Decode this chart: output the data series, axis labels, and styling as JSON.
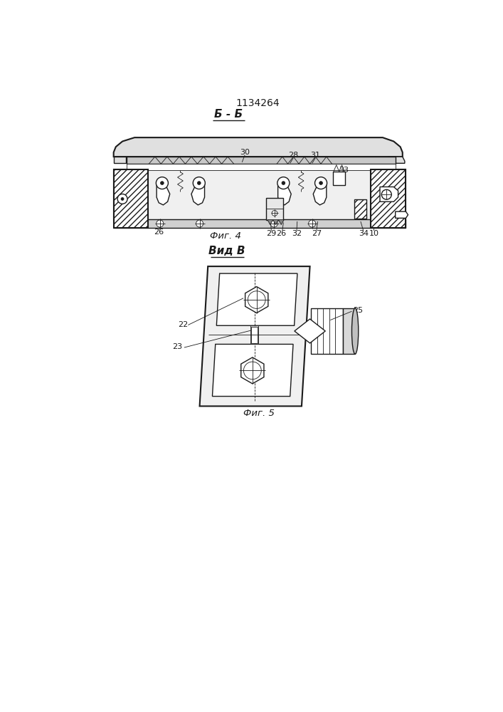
{
  "patent_number": "1134264",
  "fig4_label": "Фиг. 4",
  "fig5_label": "Фиг. 5",
  "section_label": "Б - Б",
  "view_label": "Вид В",
  "line_color": "#1a1a1a"
}
